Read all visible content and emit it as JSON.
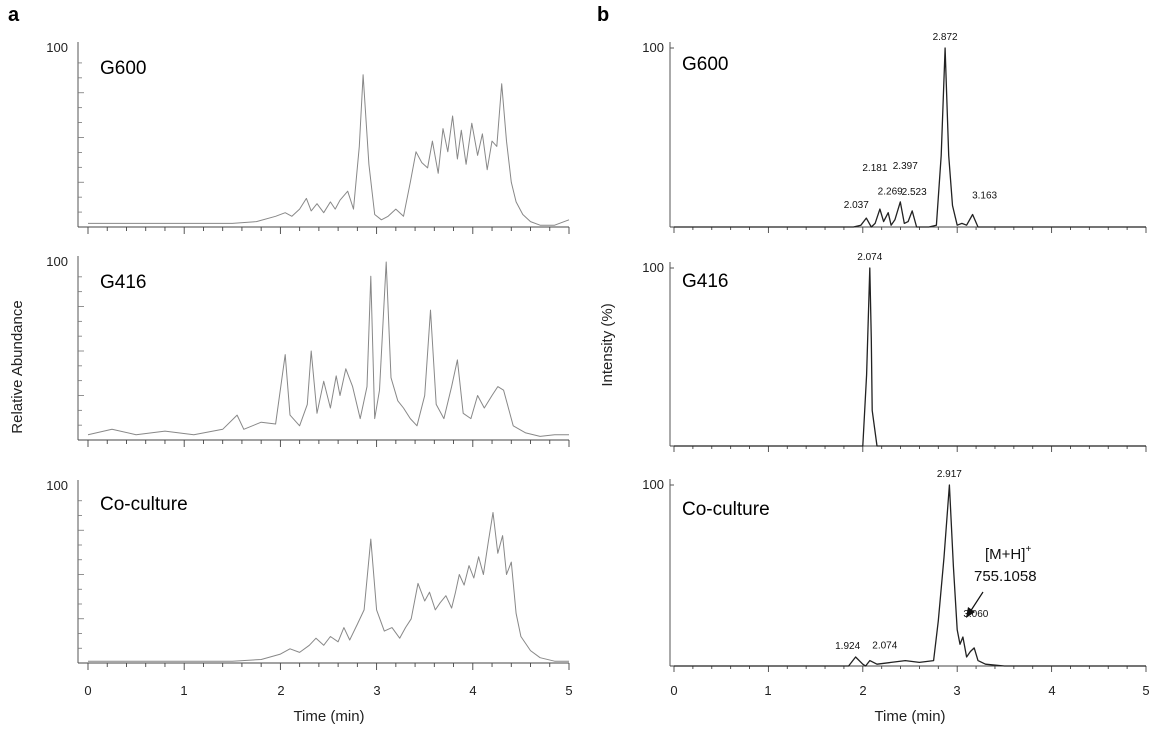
{
  "panels": {
    "a": {
      "letter": "a",
      "ylabel": "Relative Abundance",
      "xlabel": "Time (min)",
      "x_ticks": [
        "0",
        "1",
        "2",
        "3",
        "4",
        "5"
      ],
      "y_max_label": "100"
    },
    "b": {
      "letter": "b",
      "ylabel": "Intensity (%)",
      "xlabel": "Time (min)",
      "x_ticks": [
        "0",
        "1",
        "2",
        "3",
        "4",
        "5"
      ],
      "y_max_label": "100"
    }
  },
  "chart_data": [
    {
      "type": "line",
      "panel": "a",
      "subplot": "G600",
      "xlim": [
        0,
        5
      ],
      "ylim": [
        0,
        100
      ],
      "x_ticks": [
        0,
        1,
        2,
        3,
        4,
        5
      ],
      "x": [
        0,
        0.5,
        1.0,
        1.5,
        1.75,
        1.95,
        2.05,
        2.12,
        2.2,
        2.27,
        2.32,
        2.38,
        2.45,
        2.52,
        2.57,
        2.62,
        2.7,
        2.76,
        2.82,
        2.86,
        2.92,
        2.98,
        3.05,
        3.12,
        3.2,
        3.28,
        3.35,
        3.41,
        3.47,
        3.53,
        3.58,
        3.64,
        3.69,
        3.74,
        3.79,
        3.84,
        3.88,
        3.93,
        3.99,
        4.05,
        4.1,
        4.15,
        4.2,
        4.25,
        4.3,
        4.35,
        4.4,
        4.45,
        4.52,
        4.6,
        4.7,
        4.85,
        5.0
      ],
      "y": [
        2,
        2,
        2,
        2,
        3,
        6,
        8,
        6,
        10,
        16,
        9,
        13,
        8,
        14,
        10,
        15,
        20,
        10,
        45,
        85,
        35,
        7,
        4,
        6,
        10,
        6,
        25,
        42,
        36,
        33,
        48,
        30,
        55,
        42,
        62,
        38,
        54,
        35,
        58,
        40,
        52,
        32,
        48,
        45,
        80,
        48,
        25,
        14,
        7,
        3,
        1,
        1,
        4
      ],
      "labels": [
        "G600"
      ]
    },
    {
      "type": "line",
      "panel": "a",
      "subplot": "G416",
      "xlim": [
        0,
        5
      ],
      "ylim": [
        0,
        100
      ],
      "x_ticks": [
        0,
        1,
        2,
        3,
        4,
        5
      ],
      "x": [
        0,
        0.25,
        0.5,
        0.8,
        1.1,
        1.4,
        1.55,
        1.62,
        1.8,
        1.95,
        2.05,
        2.1,
        2.2,
        2.28,
        2.32,
        2.38,
        2.45,
        2.52,
        2.58,
        2.62,
        2.68,
        2.75,
        2.83,
        2.9,
        2.94,
        2.98,
        3.03,
        3.1,
        3.15,
        3.22,
        3.28,
        3.35,
        3.42,
        3.5,
        3.56,
        3.62,
        3.7,
        3.78,
        3.84,
        3.9,
        3.98,
        4.05,
        4.12,
        4.2,
        4.26,
        4.32,
        4.42,
        4.55,
        4.7,
        4.85,
        5.0
      ],
      "y": [
        3,
        6,
        3,
        5,
        3,
        6,
        14,
        6,
        10,
        9,
        48,
        14,
        8,
        20,
        50,
        15,
        33,
        18,
        36,
        25,
        40,
        30,
        12,
        30,
        92,
        12,
        28,
        100,
        35,
        22,
        18,
        12,
        8,
        25,
        73,
        20,
        12,
        30,
        45,
        15,
        12,
        25,
        18,
        25,
        30,
        28,
        8,
        4,
        2,
        3,
        3
      ],
      "labels": [
        "G416"
      ]
    },
    {
      "type": "line",
      "panel": "a",
      "subplot": "Co-culture",
      "xlim": [
        0,
        5
      ],
      "ylim": [
        0,
        100
      ],
      "x_ticks": [
        0,
        1,
        2,
        3,
        4,
        5
      ],
      "x": [
        0,
        0.5,
        1.0,
        1.5,
        1.8,
        2.0,
        2.1,
        2.2,
        2.3,
        2.37,
        2.45,
        2.52,
        2.6,
        2.66,
        2.72,
        2.8,
        2.87,
        2.94,
        3.0,
        3.08,
        3.16,
        3.24,
        3.3,
        3.36,
        3.43,
        3.5,
        3.55,
        3.61,
        3.66,
        3.72,
        3.78,
        3.82,
        3.86,
        3.91,
        3.96,
        4.01,
        4.06,
        4.11,
        4.16,
        4.21,
        4.26,
        4.31,
        4.35,
        4.4,
        4.45,
        4.5,
        4.6,
        4.7,
        4.85,
        5.0
      ],
      "y": [
        1,
        1,
        1,
        1,
        2,
        5,
        8,
        6,
        10,
        14,
        10,
        15,
        12,
        20,
        13,
        22,
        30,
        70,
        30,
        18,
        20,
        14,
        20,
        25,
        45,
        35,
        40,
        30,
        34,
        38,
        31,
        40,
        50,
        44,
        55,
        48,
        60,
        50,
        68,
        85,
        62,
        72,
        50,
        57,
        28,
        15,
        7,
        3,
        1,
        1
      ],
      "labels": [
        "Co-culture"
      ]
    },
    {
      "type": "line",
      "panel": "b",
      "subplot": "G600",
      "xlim": [
        0,
        5
      ],
      "ylim": [
        0,
        100
      ],
      "x_ticks": [
        0,
        1,
        2,
        3,
        4,
        5
      ],
      "x": [
        0,
        1.0,
        1.9,
        1.98,
        2.037,
        2.09,
        2.13,
        2.181,
        2.22,
        2.269,
        2.3,
        2.34,
        2.397,
        2.44,
        2.48,
        2.523,
        2.57,
        2.7,
        2.78,
        2.83,
        2.872,
        2.91,
        2.95,
        3.0,
        3.05,
        3.1,
        3.163,
        3.22,
        3.35,
        4.0,
        5.0
      ],
      "y": [
        0,
        0,
        0,
        1,
        5,
        0,
        2,
        10,
        3,
        8,
        1,
        4,
        14,
        2,
        3,
        9,
        0,
        0,
        1,
        40,
        100,
        40,
        12,
        1,
        2,
        1,
        7,
        0,
        0,
        0,
        0
      ],
      "peak_labels": [
        {
          "x": 2.037,
          "label": "2.037"
        },
        {
          "x": 2.181,
          "label": "2.181"
        },
        {
          "x": 2.269,
          "label": "2.269"
        },
        {
          "x": 2.397,
          "label": "2.397"
        },
        {
          "x": 2.523,
          "label": "2.523"
        },
        {
          "x": 2.872,
          "label": "2.872"
        },
        {
          "x": 3.163,
          "label": "3.163"
        }
      ],
      "labels": [
        "G600"
      ]
    },
    {
      "type": "line",
      "panel": "b",
      "subplot": "G416",
      "xlim": [
        0,
        5
      ],
      "ylim": [
        0,
        100
      ],
      "x_ticks": [
        0,
        1,
        2,
        3,
        4,
        5
      ],
      "x": [
        0,
        1.9,
        2.0,
        2.04,
        2.074,
        2.09,
        2.1,
        2.15,
        3.0,
        5.0
      ],
      "y": [
        0,
        0,
        0,
        40,
        100,
        60,
        20,
        0,
        0,
        0
      ],
      "peak_labels": [
        {
          "x": 2.074,
          "label": "2.074"
        }
      ],
      "labels": [
        "G416"
      ]
    },
    {
      "type": "line",
      "panel": "b",
      "subplot": "Co-culture",
      "xlim": [
        0,
        5
      ],
      "ylim": [
        0,
        100
      ],
      "x_ticks": [
        0,
        1,
        2,
        3,
        4,
        5
      ],
      "x": [
        0,
        1.0,
        1.85,
        1.924,
        2.0,
        2.03,
        2.074,
        2.15,
        2.3,
        2.45,
        2.6,
        2.75,
        2.8,
        2.86,
        2.917,
        2.96,
        3.0,
        3.03,
        3.06,
        3.1,
        3.14,
        3.18,
        3.22,
        3.3,
        3.5,
        4.0,
        5.0
      ],
      "y": [
        0,
        0,
        0,
        5,
        1,
        0,
        3,
        1,
        2,
        3,
        2,
        3,
        25,
        60,
        100,
        55,
        20,
        12,
        16,
        5,
        8,
        10,
        3,
        1,
        0,
        0,
        0
      ],
      "peak_labels": [
        {
          "x": 1.924,
          "label": "1.924"
        },
        {
          "x": 2.074,
          "label": "2.074"
        },
        {
          "x": 2.917,
          "label": "2.917"
        },
        {
          "x": 3.06,
          "label": "3.060"
        }
      ],
      "annotation": {
        "line1": "[M+H]",
        "sup": "+",
        "line2": "755.1058"
      },
      "labels": [
        "Co-culture"
      ]
    }
  ]
}
